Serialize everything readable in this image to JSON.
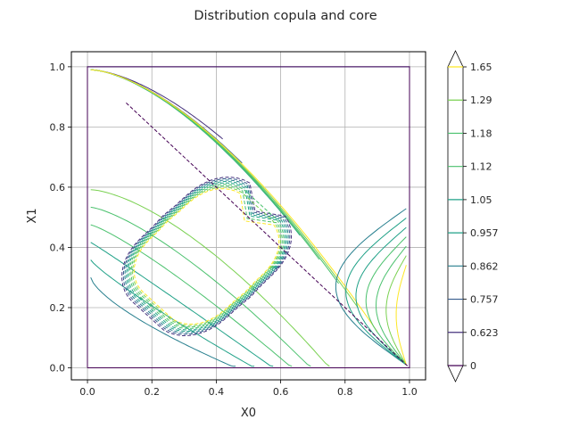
{
  "chart_data": {
    "type": "contour",
    "title": "Distribution copula and core",
    "xlabel": "X0",
    "ylabel": "X1",
    "xlim": [
      -0.05,
      1.05
    ],
    "ylim": [
      -0.04,
      1.05
    ],
    "xticks": [
      "0.0",
      "0.2",
      "0.4",
      "0.6",
      "0.8",
      "1.0"
    ],
    "yticks": [
      "0.0",
      "0.2",
      "0.4",
      "0.6",
      "0.8",
      "1.0"
    ],
    "grid": true,
    "colorbar": {
      "levels": [
        "0",
        "0.623",
        "0.757",
        "0.862",
        "0.957",
        "1.05",
        "1.12",
        "1.18",
        "1.29",
        "1.65"
      ],
      "colormap": "viridis",
      "extend": "both"
    },
    "level_colors": [
      "#440154",
      "#46327e",
      "#365c8d",
      "#277f8e",
      "#1fa187",
      "#1fa187",
      "#4ac16d",
      "#4ac16d",
      "#7ad151",
      "#fde725"
    ],
    "box_color": "#3b6fb0",
    "series": [
      {
        "name": "copula",
        "style": "solid"
      },
      {
        "name": "core",
        "style": "dashed"
      }
    ]
  }
}
